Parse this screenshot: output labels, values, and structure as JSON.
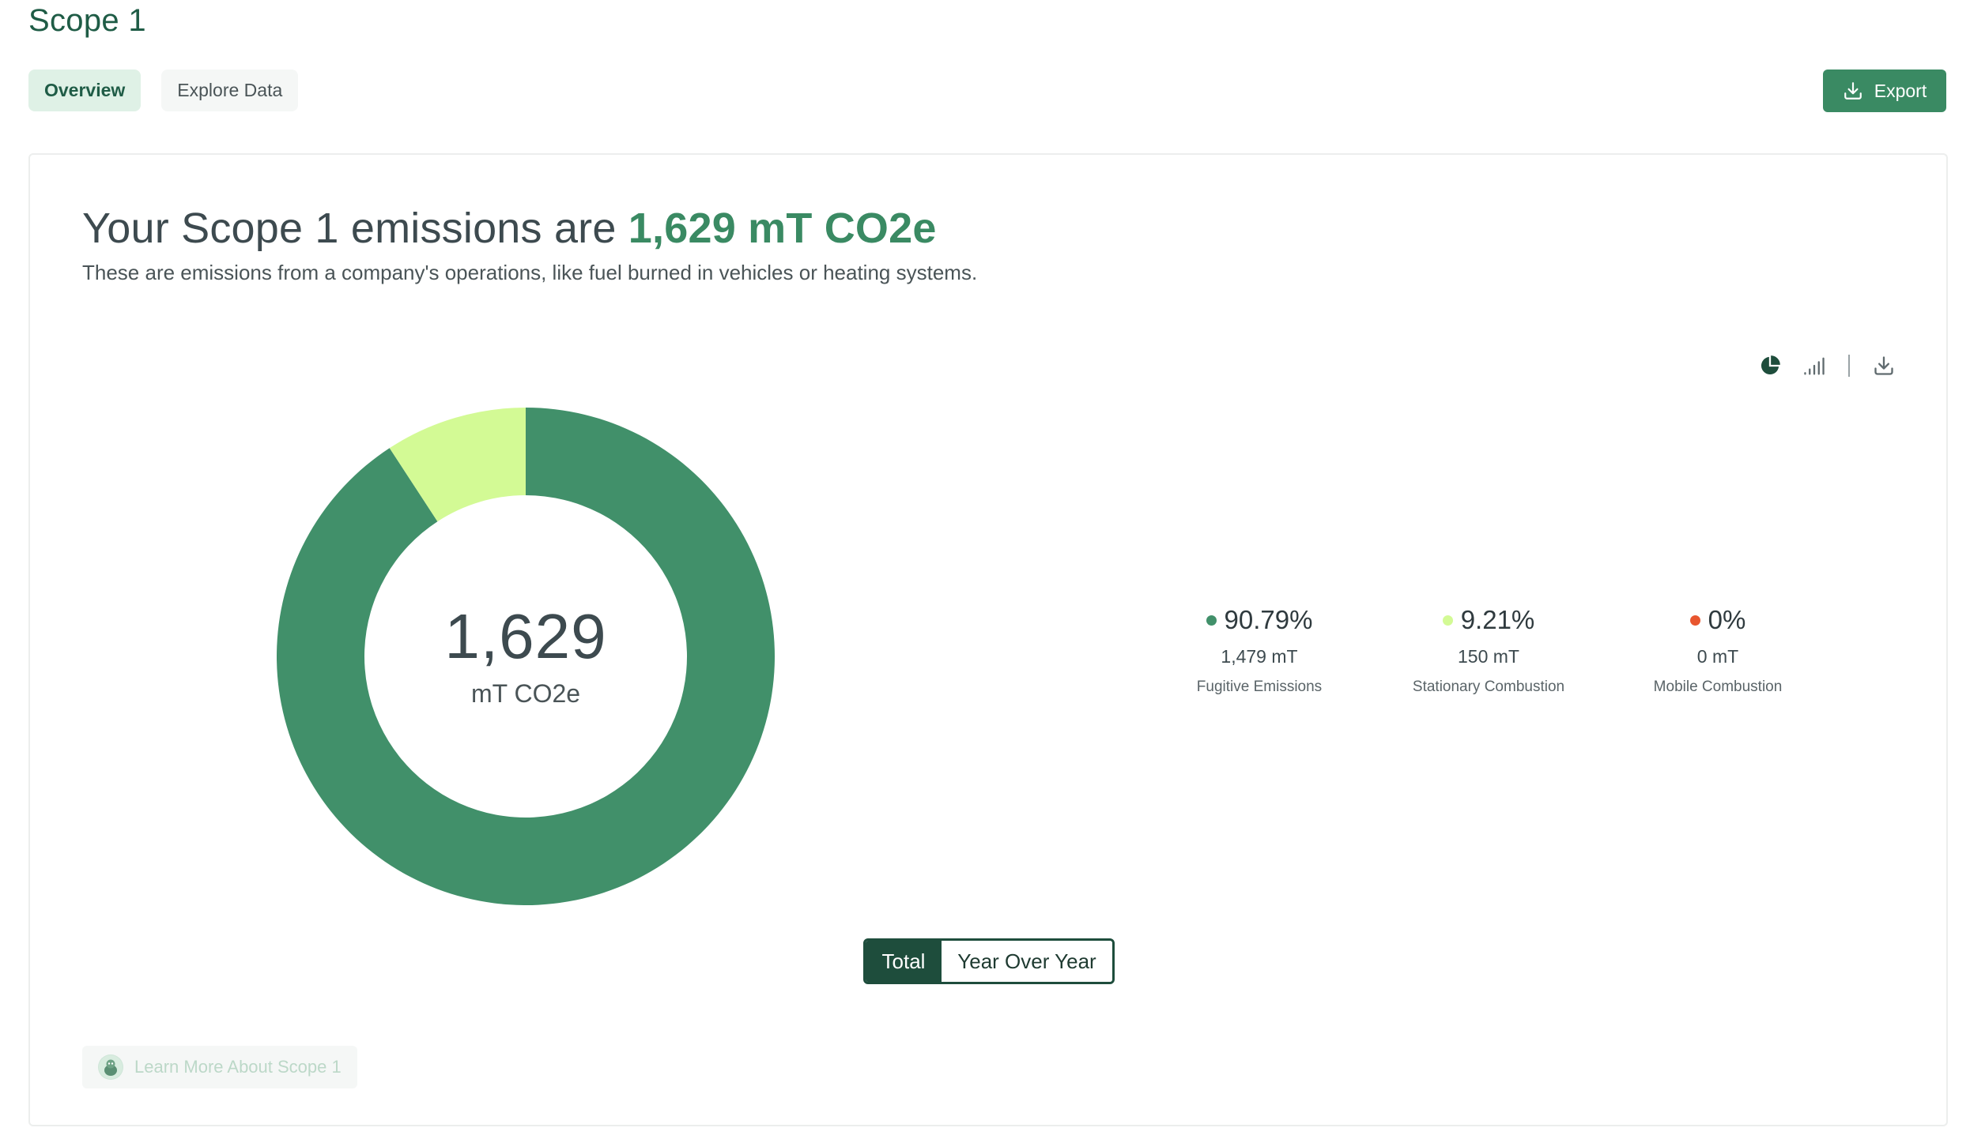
{
  "page": {
    "title": "Scope 1"
  },
  "tabs": [
    {
      "label": "Overview",
      "active": true
    },
    {
      "label": "Explore Data",
      "active": false
    }
  ],
  "export": {
    "label": "Export",
    "icon": "download-icon"
  },
  "summary": {
    "headline_prefix": "Your Scope 1 emissions are ",
    "headline_value": "1,629 mT CO2e",
    "description": "These are emissions from a company's operations, like fuel burned in vehicles or heating systems."
  },
  "chart_tools": [
    "pie-chart-icon",
    "bar-chart-icon",
    "download-icon"
  ],
  "chart_data": {
    "type": "pie",
    "donut": true,
    "center_value": "1,629",
    "center_unit": "mT CO2e",
    "categories": [
      "Fugitive Emissions",
      "Stationary Combustion",
      "Mobile Combustion"
    ],
    "values": [
      1479,
      150,
      0
    ],
    "value_labels": [
      "1,479 mT",
      "150 mT",
      "0 mT"
    ],
    "percent_labels": [
      "90.79%",
      "9.21%",
      "0%"
    ],
    "colors": [
      "#41906a",
      "#d3fa95",
      "#e8562f"
    ],
    "legend_position": "right"
  },
  "view_toggle": {
    "options": [
      "Total",
      "Year Over Year"
    ],
    "selected": "Total"
  },
  "learn_more": {
    "label": "Learn More About Scope 1"
  }
}
